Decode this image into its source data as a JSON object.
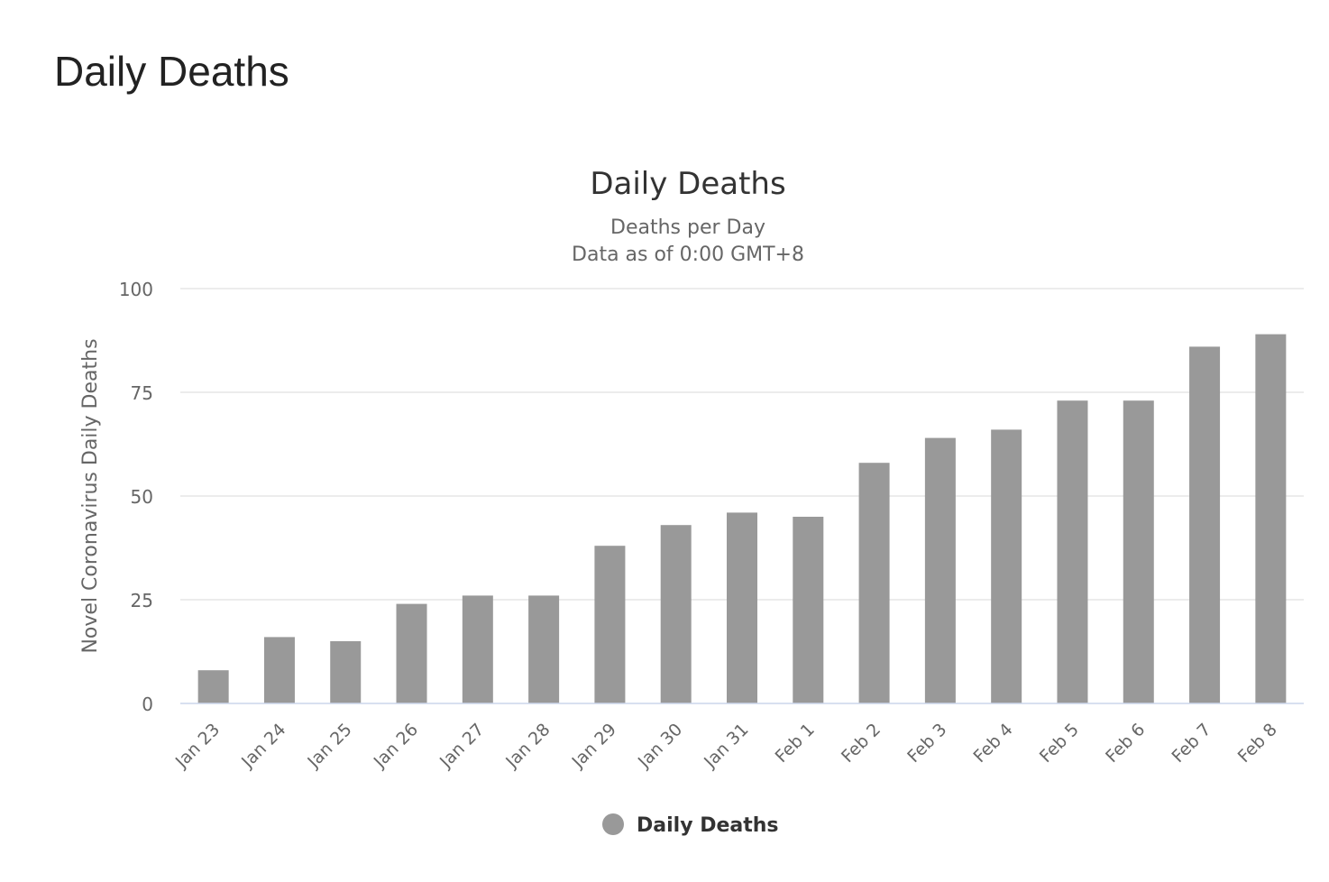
{
  "page": {
    "heading": "Daily Deaths"
  },
  "chart_data": {
    "type": "bar",
    "title": "Daily Deaths",
    "subtitle_lines": [
      "Deaths per Day",
      "Data as of 0:00 GMT+8"
    ],
    "xlabel": "",
    "ylabel": "Novel Coronavirus Daily Deaths",
    "ylim": [
      0,
      100
    ],
    "yticks": [
      0,
      25,
      50,
      75,
      100
    ],
    "grid": true,
    "legend_position": "bottom-center",
    "categories": [
      "Jan 23",
      "Jan 24",
      "Jan 25",
      "Jan 26",
      "Jan 27",
      "Jan 28",
      "Jan 29",
      "Jan 30",
      "Jan 31",
      "Feb 1",
      "Feb 2",
      "Feb 3",
      "Feb 4",
      "Feb 5",
      "Feb 6",
      "Feb 7",
      "Feb 8"
    ],
    "series": [
      {
        "name": "Daily Deaths",
        "color": "#999999",
        "values": [
          8,
          16,
          15,
          24,
          26,
          26,
          38,
          43,
          46,
          45,
          58,
          64,
          66,
          73,
          73,
          86,
          89
        ]
      }
    ]
  }
}
